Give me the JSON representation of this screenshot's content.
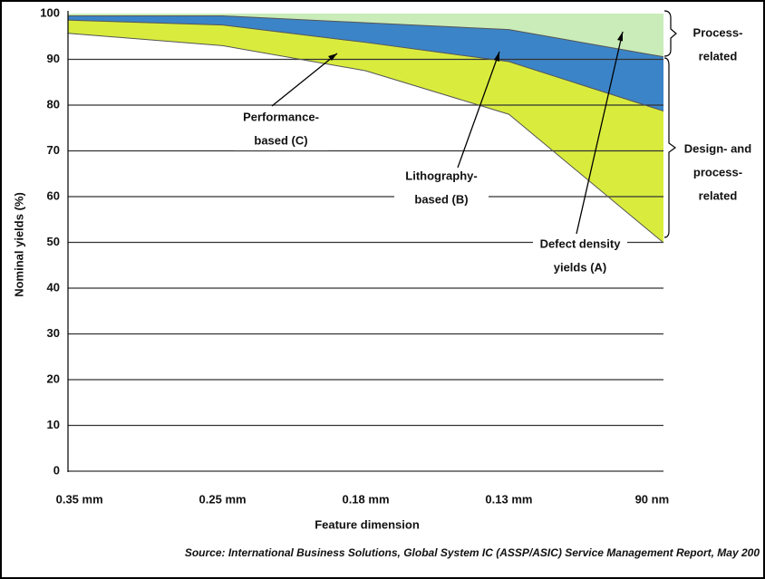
{
  "chart_data": {
    "type": "area",
    "y_label": "Nominal yields (%)",
    "x_label": "Feature dimension",
    "source": "Source: International Business Solutions, Global System IC (ASSP/ASIC) Service Management Report, May 200",
    "categories": [
      "0.35 mm",
      "0.25 mm",
      "0.18 mm",
      "0.13 mm",
      "90 nm"
    ],
    "series": [
      {
        "color": "#3b84c8",
        "values": [
          99.5,
          99.5,
          98,
          96.5,
          91
        ]
      },
      {
        "color": "#d9ec3e",
        "values": [
          98.5,
          97.5,
          93.7,
          89.5,
          79.5
        ]
      },
      {
        "color": "#ffffff",
        "values": [
          95.5,
          93,
          87.5,
          78,
          52
        ]
      }
    ],
    "top_color": "#c9ecb9",
    "ylim": [
      0,
      100
    ],
    "yticks": [
      0,
      10,
      20,
      30,
      40,
      50,
      60,
      70,
      80,
      90,
      100
    ],
    "grid": true,
    "annotations": [
      {
        "lines": [
          "Performance-",
          "based (C)"
        ]
      },
      {
        "lines": [
          "Lithography-",
          "based (B)"
        ]
      },
      {
        "lines": [
          "Defect density",
          "yields (A)"
        ]
      },
      {
        "lines": [
          "Process-",
          "related"
        ]
      },
      {
        "lines": [
          "Design- and",
          "process-",
          "related"
        ]
      }
    ]
  }
}
